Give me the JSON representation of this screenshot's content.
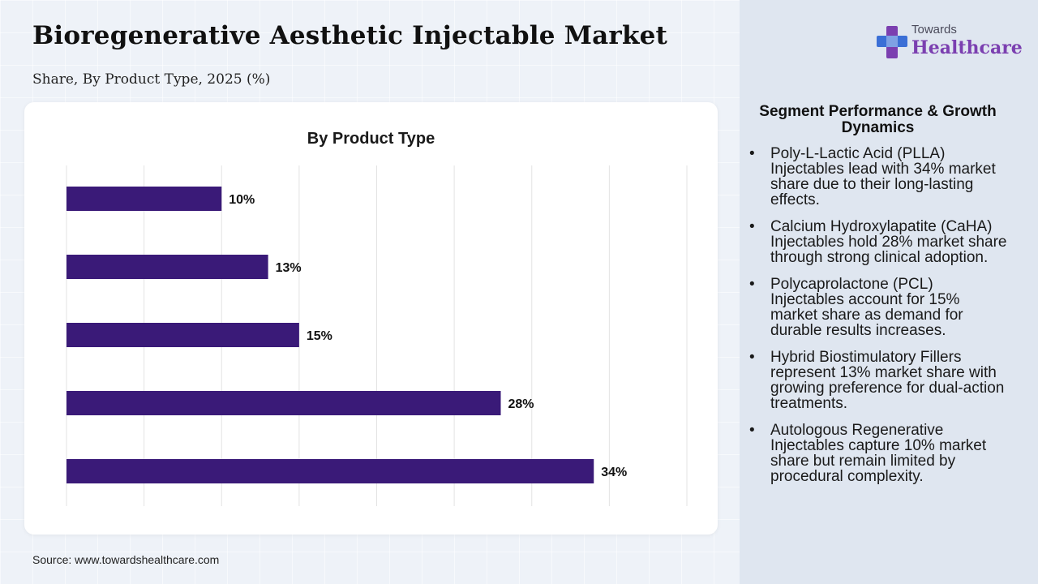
{
  "header": {
    "title": "Bioregenerative Aesthetic Injectable Market",
    "subtitle": "Share, By Product Type, 2025 (%)"
  },
  "logo": {
    "line1": "Towards",
    "line2": "Healthcare",
    "brand_color": "#7b3fb0",
    "icon": "cross-logo-icon"
  },
  "chart_data": {
    "type": "bar",
    "orientation": "horizontal",
    "title": "By Product Type",
    "categories": [
      "",
      "",
      "",
      "",
      ""
    ],
    "values": [
      10,
      13,
      15,
      28,
      34
    ],
    "data_labels": [
      "10%",
      "13%",
      "15%",
      "28%",
      "34%"
    ],
    "xlim": [
      0,
      40
    ],
    "grid": true,
    "bar_color": "#3a1a78",
    "xlabel": "",
    "ylabel": ""
  },
  "panel": {
    "title": "Segment Performance & Growth Dynamics",
    "bullets": [
      "Poly-L-Lactic Acid (PLLA) Injectables lead with 34% market share due to their long-lasting effects.",
      "Calcium Hydroxylapatite (CaHA) Injectables hold 28% market share through strong clinical adoption.",
      "Polycaprolactone (PCL) Injectables account for 15% market share as demand for durable results increases.",
      "Hybrid Biostimulatory Fillers represent 13% market share with growing preference for dual-action treatments.",
      "Autologous Regenerative Injectables capture 10% market share but remain limited by procedural complexity."
    ]
  },
  "footer": {
    "source": "Source: www.towardshealthcare.com"
  }
}
